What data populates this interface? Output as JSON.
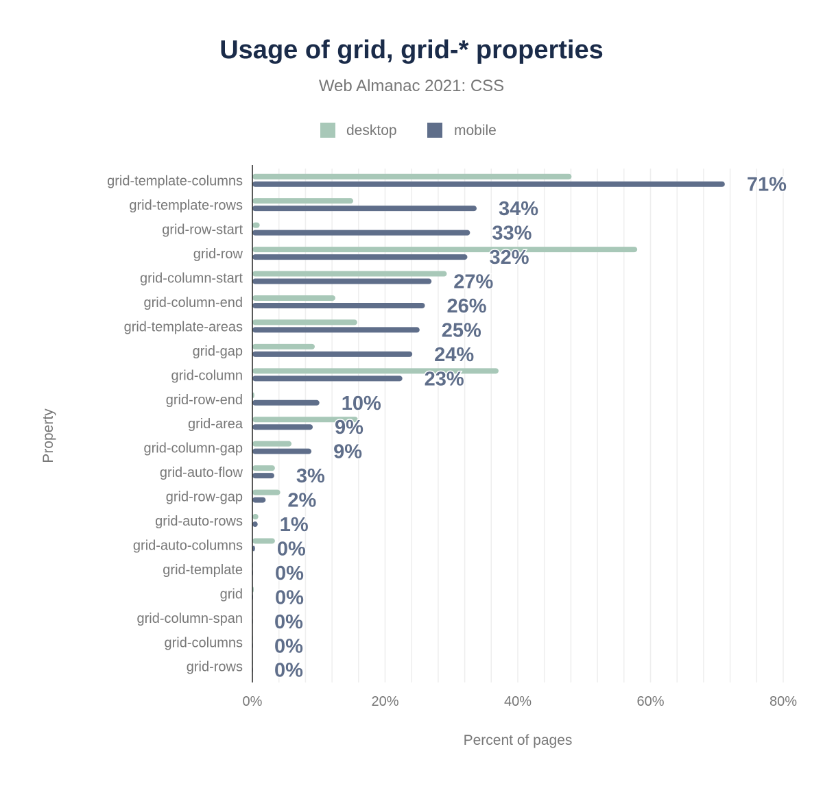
{
  "chart_data": {
    "type": "bar",
    "orientation": "horizontal",
    "title": "Usage of grid, grid-* properties",
    "subtitle": "Web Almanac 2021: CSS",
    "xlabel": "Percent of pages",
    "ylabel": "Property",
    "xlim": [
      0,
      80
    ],
    "xticks": [
      "0%",
      "20%",
      "40%",
      "60%",
      "80%"
    ],
    "grid": true,
    "legend_position": "top",
    "categories": [
      "grid-template-columns",
      "grid-template-rows",
      "grid-row-start",
      "grid-row",
      "grid-column-start",
      "grid-column-end",
      "grid-template-areas",
      "grid-gap",
      "grid-column",
      "grid-row-end",
      "grid-area",
      "grid-column-gap",
      "grid-auto-flow",
      "grid-row-gap",
      "grid-auto-rows",
      "grid-auto-columns",
      "grid-template",
      "grid",
      "grid-column-span",
      "grid-columns",
      "grid-rows"
    ],
    "series": [
      {
        "name": "desktop",
        "color": "#a8c8b8",
        "values": [
          48.1,
          15.2,
          1.1,
          58.0,
          29.3,
          12.5,
          15.8,
          9.4,
          37.1,
          0.3,
          15.9,
          5.9,
          3.4,
          4.2,
          0.9,
          3.4,
          0.1,
          0.2,
          0.0,
          0.0,
          0.0
        ]
      },
      {
        "name": "mobile",
        "color": "#5f6e8a",
        "values": [
          71.2,
          33.8,
          32.8,
          32.4,
          27.0,
          26.0,
          25.2,
          24.1,
          22.6,
          10.1,
          9.1,
          8.9,
          3.3,
          2.0,
          0.8,
          0.4,
          0.1,
          0.1,
          0.0,
          0.0,
          0.0
        ],
        "labels": [
          "71%",
          "34%",
          "33%",
          "32%",
          "27%",
          "26%",
          "25%",
          "24%",
          "23%",
          "10%",
          "9%",
          "9%",
          "3%",
          "2%",
          "1%",
          "0%",
          "0%",
          "0%",
          "0%",
          "0%",
          "0%"
        ]
      }
    ]
  }
}
